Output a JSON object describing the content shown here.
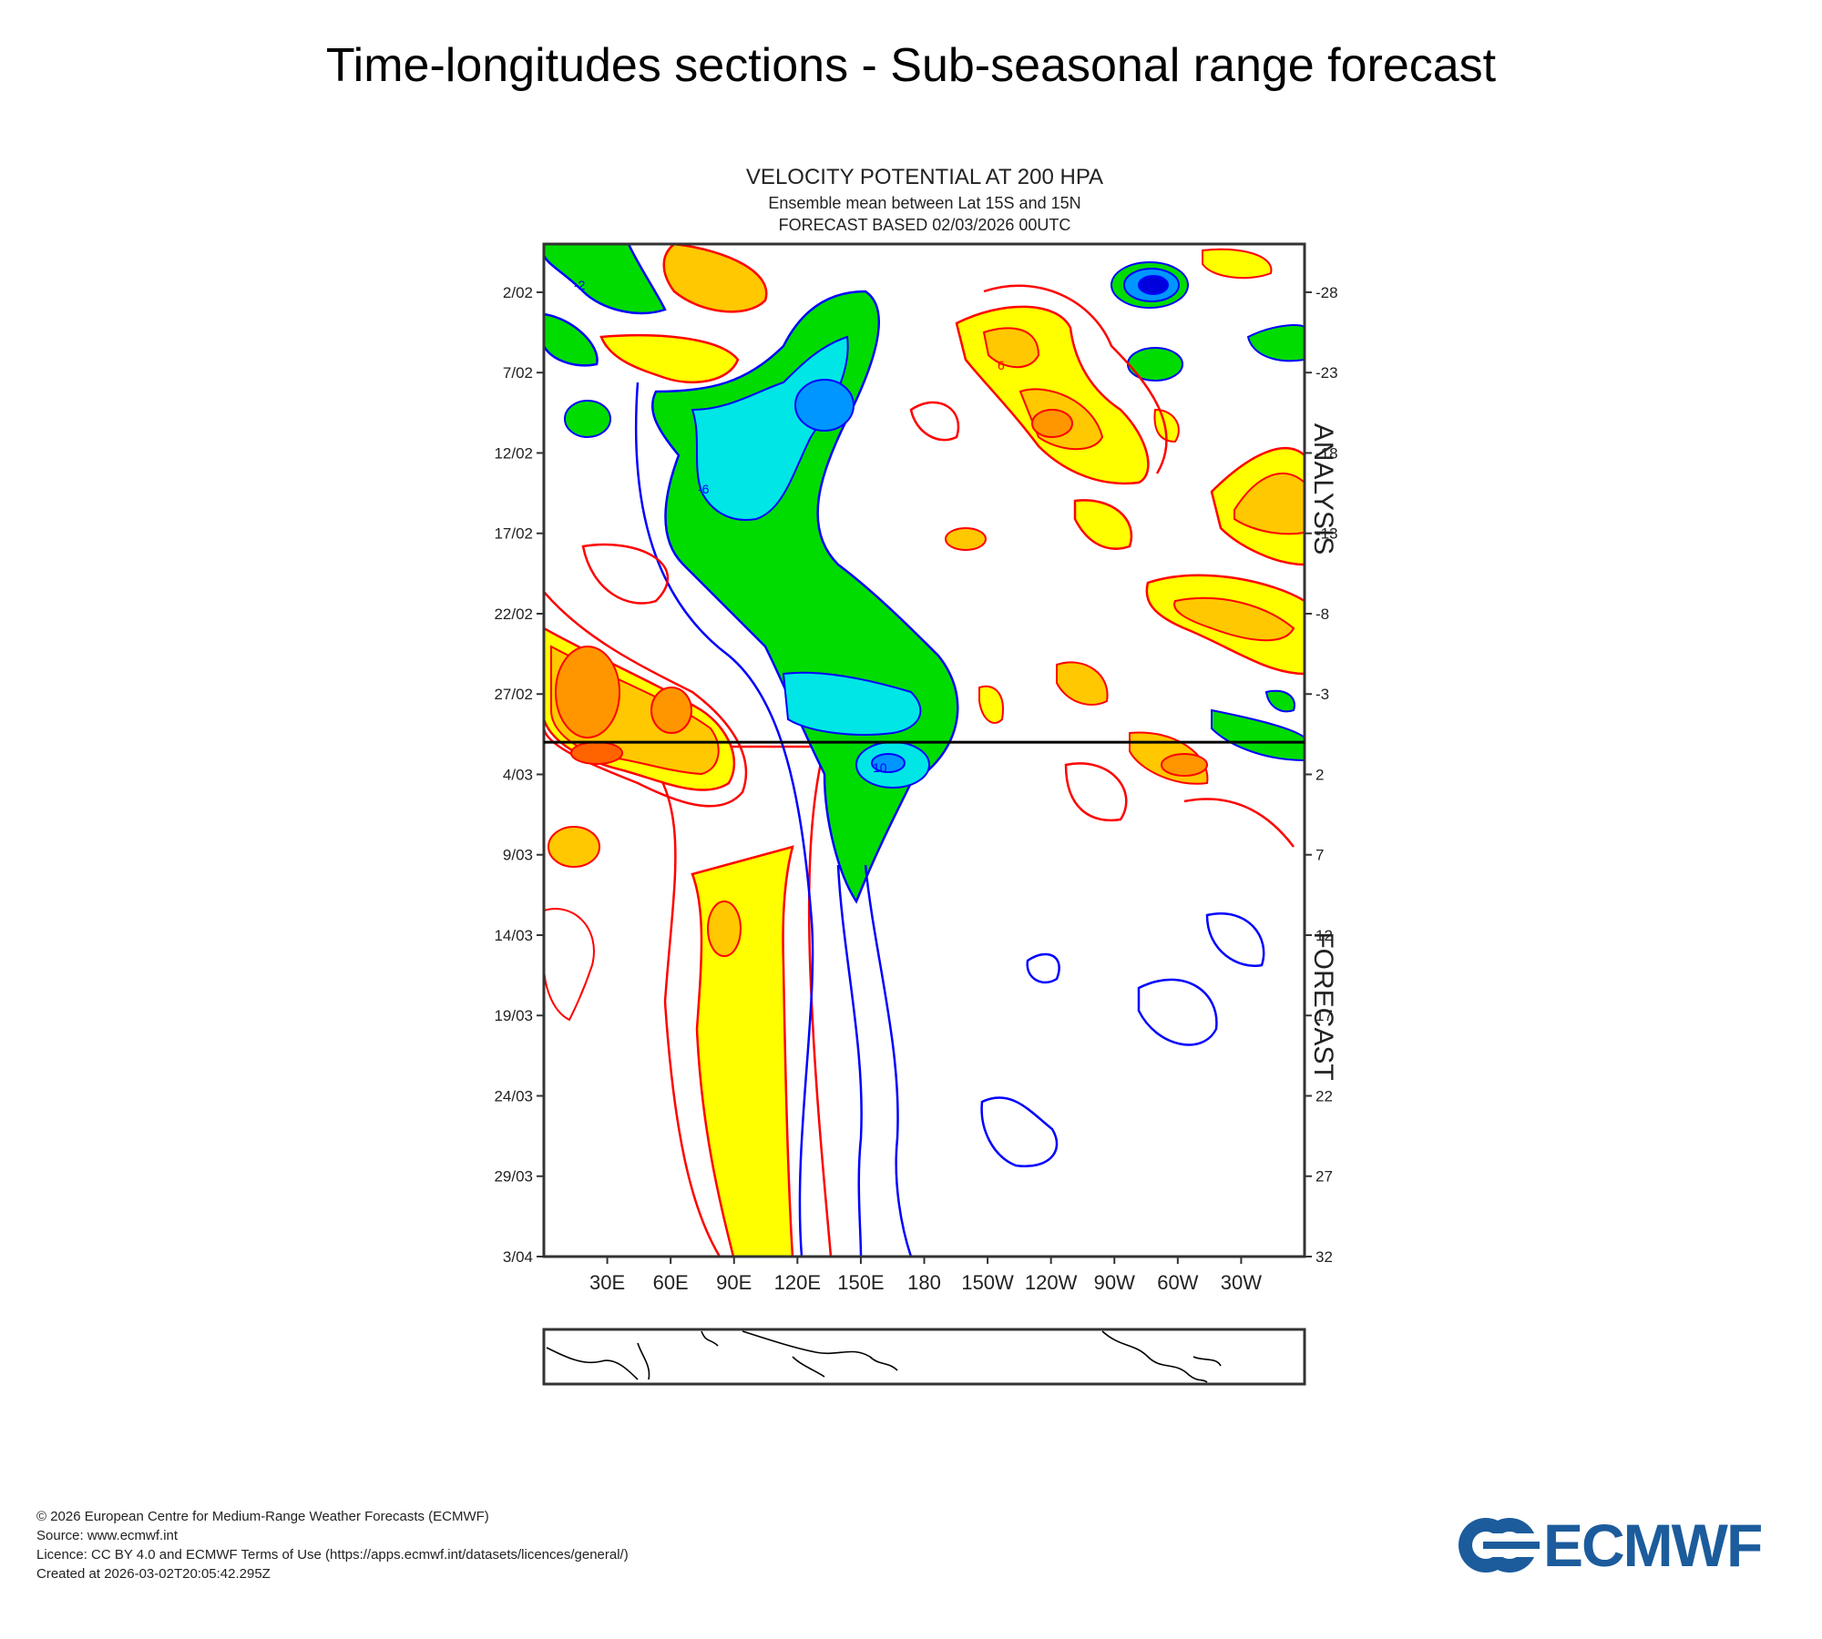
{
  "page": {
    "title": "Time-longitudes sections - Sub-seasonal range forecast"
  },
  "footer": {
    "copyright": "© 2026 European Centre for Medium-Range Weather Forecasts (ECMWF)",
    "source": "Source: www.ecmwf.int",
    "licence": "Licence: CC BY 4.0 and ECMWF Terms of Use (https://apps.ecmwf.int/datasets/licences/general/)",
    "created": "Created at 2026-03-02T20:05:42.295Z"
  },
  "logo": {
    "text": "ECMWF",
    "color": "#1c5c9c"
  },
  "chart_data": {
    "type": "heatmap",
    "title": "VELOCITY POTENTIAL AT 200 HPA",
    "subtitle1": "Ensemble mean between  Lat 15S and 15N",
    "subtitle2": "FORECAST  BASED 02/03/2026 00UTC",
    "x_ticks": [
      "30E",
      "60E",
      "90E",
      "120E",
      "150E",
      "180",
      "150W",
      "120W",
      "90W",
      "60W",
      "30W"
    ],
    "x_tick_lon": [
      30,
      60,
      90,
      120,
      150,
      180,
      210,
      240,
      270,
      300,
      330
    ],
    "x_range": [
      0,
      360
    ],
    "y_left_ticks": [
      "2/02",
      "7/02",
      "12/02",
      "17/02",
      "22/02",
      "27/02",
      "4/03",
      "9/03",
      "14/03",
      "19/03",
      "24/03",
      "29/03",
      "3/04"
    ],
    "y_right_ticks": [
      "-28",
      "-23",
      "-18",
      "-13",
      "-8",
      "-3",
      "2",
      "7",
      "12",
      "17",
      "22",
      "27",
      "32"
    ],
    "y_day_range": [
      -31,
      32
    ],
    "forecast_start_day": 0,
    "right_labels": {
      "analysis": "ANALYSIS",
      "forecast": "FORECAST"
    },
    "contour_levels": [
      -10,
      -8,
      -6,
      -4,
      -2,
      2,
      4,
      6,
      8,
      10
    ],
    "contour_labels": [
      "2",
      "-2",
      "6",
      "-6",
      "10"
    ],
    "colors": {
      "positive_fill": [
        "#ffff00",
        "#ffc800",
        "#ff9600",
        "#ff6400"
      ],
      "negative_fill": [
        "#00dc00",
        "#00e6e6",
        "#0096ff",
        "#0000dc"
      ],
      "positive_line": "#ff0000",
      "negative_line": "#0000ff",
      "boundary_line": "#000000"
    },
    "features": [
      {
        "sign": "+",
        "name": "indian-ocean-forecast-ridge",
        "lon_range": [
          75,
          115
        ],
        "day_range": [
          7,
          32
        ],
        "peak": 4
      },
      {
        "sign": "+",
        "name": "africa-late-feb-max",
        "lon_range": [
          0,
          90
        ],
        "day_range": [
          -9,
          4
        ],
        "peak": 6
      },
      {
        "sign": "-",
        "name": "maritime-continent-min",
        "lon_range": [
          90,
          180
        ],
        "day_range": [
          -27,
          11
        ],
        "peak": -8
      },
      {
        "sign": "+",
        "name": "east-pacific-early-feb-max",
        "lon_range": [
          220,
          290
        ],
        "day_range": [
          -26,
          -15
        ],
        "peak": 6
      },
      {
        "sign": "+",
        "name": "atlantic-mid-feb-max",
        "lon_range": [
          290,
          360
        ],
        "day_range": [
          -17,
          -4
        ],
        "peak": 6
      },
      {
        "sign": "-",
        "name": "south-america-late-jan-min",
        "lon_range": [
          270,
          305
        ],
        "day_range": [
          -31,
          -27
        ],
        "peak": -10
      }
    ]
  }
}
